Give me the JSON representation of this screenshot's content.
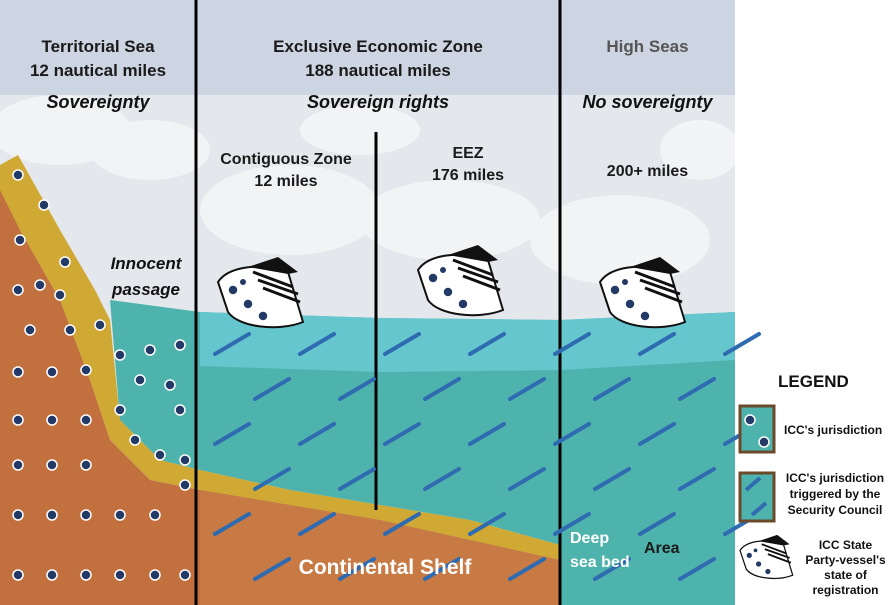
{
  "zones": {
    "territorial": {
      "title": "Territorial Sea",
      "extent": "12 nautical miles",
      "status": "Sovereignty"
    },
    "eez": {
      "title": "Exclusive Economic Zone",
      "extent": "188 nautical miles",
      "status": "Sovereign  rights"
    },
    "high_seas": {
      "title": "High Seas",
      "status": "No sovereignty"
    }
  },
  "subzones": {
    "contiguous": {
      "title": "Contiguous Zone",
      "extent": "12 miles"
    },
    "eez_inner": {
      "title": "EEZ",
      "extent": "176 miles"
    },
    "high_seas_extent": "200+ miles"
  },
  "labels": {
    "innocent_passage_1": "Innocent",
    "innocent_passage_2": "passage",
    "continental_shelf": "Continental Shelf",
    "deep_sea_bed_1": "Deep",
    "deep_sea_bed_2": "sea bed",
    "area": "Area"
  },
  "legend": {
    "title": "LEGEND",
    "items": [
      {
        "icon": "dot-pattern-icon",
        "lines": [
          "ICC's jurisdiction"
        ]
      },
      {
        "icon": "dash-pattern-icon",
        "lines": [
          "ICC's jurisdiction",
          "triggered by the",
          "Security Council"
        ]
      },
      {
        "icon": "ship-icon",
        "lines": [
          "ICC State",
          "Party-vessel's",
          "state of",
          "registration"
        ]
      }
    ]
  },
  "colors": {
    "sky": "#e6e9ee",
    "sky_band": "#c9d2e0",
    "land": "#c2703e",
    "sand": "#cfa934",
    "sea": "#4fb3ad",
    "sea_light": "#6ccbd6",
    "dot": "#233a66",
    "dash": "#2f6bb0",
    "divider": "#000000"
  }
}
